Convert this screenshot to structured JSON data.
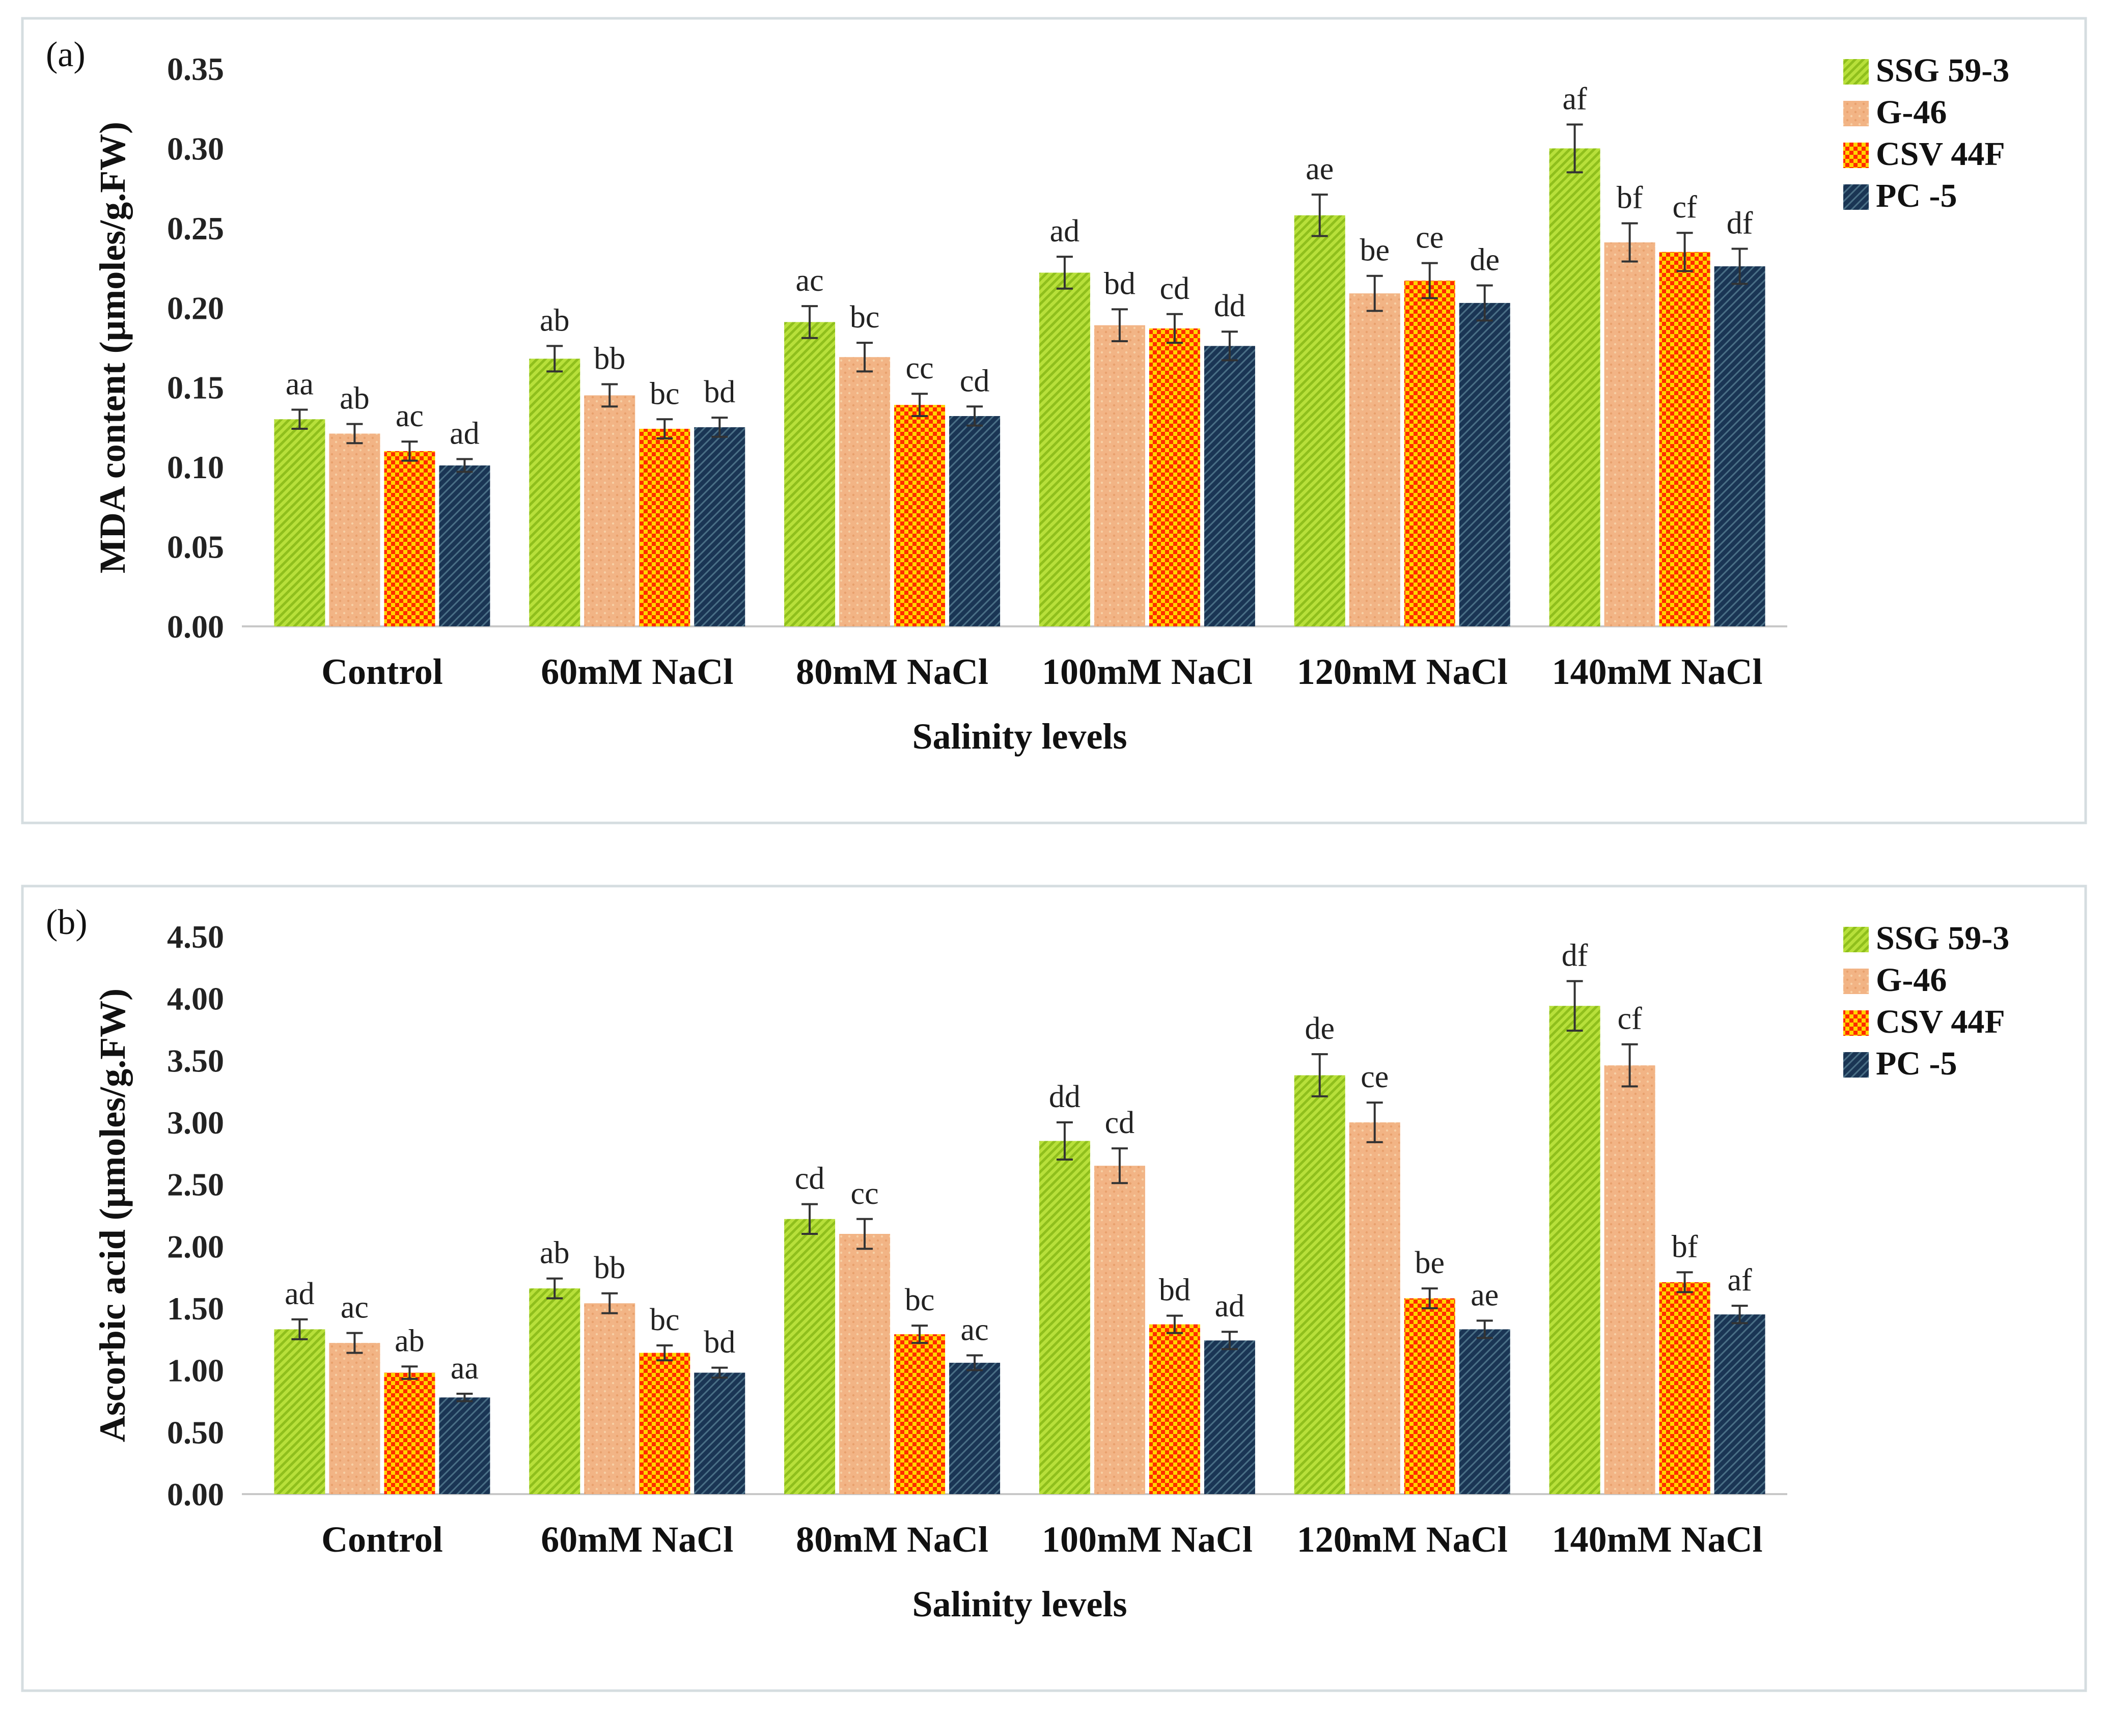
{
  "chart_data": [
    {
      "panel": "(a)",
      "type": "bar",
      "xlabel": "Salinity levels",
      "ylabel": "MDA content (µmoles/g.FW)",
      "ylim": [
        0,
        0.35
      ],
      "yticks": [
        "0.00",
        "0.05",
        "0.10",
        "0.15",
        "0.20",
        "0.25",
        "0.30",
        "0.35"
      ],
      "categories": [
        "Control",
        "60mM NaCl",
        "80mM NaCl",
        "100mM NaCl",
        "120mM NaCl",
        "140mM NaCl"
      ],
      "series": [
        {
          "name": "SSG 59-3",
          "color": "#b8e03a",
          "values": [
            0.13,
            0.168,
            0.191,
            0.222,
            0.258,
            0.3
          ],
          "errors": [
            0.006,
            0.008,
            0.01,
            0.01,
            0.013,
            0.015
          ],
          "labels": [
            "aa",
            "ab",
            "ac",
            "ad",
            "ae",
            "af"
          ]
        },
        {
          "name": "G-46",
          "color": "#f2b485",
          "values": [
            0.121,
            0.145,
            0.169,
            0.189,
            0.209,
            0.241
          ],
          "errors": [
            0.006,
            0.007,
            0.009,
            0.01,
            0.011,
            0.012
          ],
          "labels": [
            "ab",
            "bb",
            "bc",
            "bd",
            "be",
            "bf"
          ]
        },
        {
          "name": "CSV 44F",
          "color": "#ff2200",
          "values": [
            0.11,
            0.124,
            0.139,
            0.187,
            0.217,
            0.235
          ],
          "errors": [
            0.006,
            0.006,
            0.007,
            0.009,
            0.011,
            0.012
          ],
          "labels": [
            "ac",
            "bc",
            "cc",
            "cd",
            "ce",
            "cf"
          ]
        },
        {
          "name": "PC -5",
          "color": "#1a3554",
          "values": [
            0.101,
            0.125,
            0.132,
            0.176,
            0.203,
            0.226
          ],
          "errors": [
            0.004,
            0.006,
            0.006,
            0.009,
            0.011,
            0.011
          ],
          "labels": [
            "ad",
            "bd",
            "cd",
            "dd",
            "de",
            "df"
          ]
        }
      ]
    },
    {
      "panel": "(b)",
      "type": "bar",
      "xlabel": "Salinity levels",
      "ylabel": "Ascorbic acid (µmoles/g.FW)",
      "ylim": [
        0,
        4.5
      ],
      "yticks": [
        "0.00",
        "0.50",
        "1.00",
        "1.50",
        "2.00",
        "2.50",
        "3.00",
        "3.50",
        "4.00",
        "4.50"
      ],
      "categories": [
        "Control",
        "60mM NaCl",
        "80mM NaCl",
        "100mM NaCl",
        "120mM NaCl",
        "140mM NaCl"
      ],
      "series": [
        {
          "name": "SSG 59-3",
          "color": "#b8e03a",
          "values": [
            1.33,
            1.66,
            2.22,
            2.85,
            3.38,
            3.94
          ],
          "errors": [
            0.08,
            0.08,
            0.12,
            0.15,
            0.17,
            0.2
          ],
          "labels": [
            "ad",
            "ab",
            "cd",
            "dd",
            "de",
            "df"
          ]
        },
        {
          "name": "G-46",
          "color": "#f2b485",
          "values": [
            1.22,
            1.54,
            2.1,
            2.65,
            3.0,
            3.46
          ],
          "errors": [
            0.08,
            0.08,
            0.12,
            0.14,
            0.16,
            0.17
          ],
          "labels": [
            "ac",
            "bb",
            "cc",
            "cd",
            "ce",
            "cf"
          ]
        },
        {
          "name": "CSV 44F",
          "color": "#ff2200",
          "values": [
            0.98,
            1.14,
            1.29,
            1.37,
            1.58,
            1.71
          ],
          "errors": [
            0.05,
            0.06,
            0.07,
            0.07,
            0.08,
            0.08
          ],
          "labels": [
            "ab",
            "bc",
            "bc",
            "bd",
            "be",
            "bf"
          ]
        },
        {
          "name": "PC -5",
          "color": "#1a3554",
          "values": [
            0.78,
            0.98,
            1.06,
            1.24,
            1.33,
            1.45
          ],
          "errors": [
            0.03,
            0.04,
            0.06,
            0.07,
            0.07,
            0.07
          ],
          "labels": [
            "aa",
            "bd",
            "ac",
            "ad",
            "ae",
            "af"
          ]
        }
      ]
    }
  ]
}
